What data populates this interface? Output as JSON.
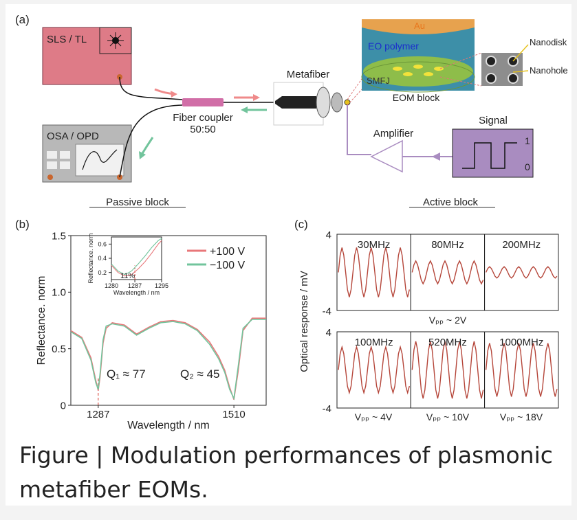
{
  "diagram": {
    "panel_label": "(a)",
    "source": "SLS / TL",
    "analyzer": "OSA / OPD",
    "coupler": "Fiber coupler",
    "coupler_ratio": "50:50",
    "metafiber": "Metafiber",
    "layer_top": "Au",
    "layer_mid": "EO polymer",
    "layer_base": "SMFJ",
    "eom_block": "EOM block",
    "nanodisk": "Nanodisk",
    "nanohole": "Nanohole",
    "amplifier": "Amplifier",
    "signal": "Signal",
    "signal_high": "1",
    "signal_low": "0",
    "passive_block": "Passive block",
    "active_block": "Active block"
  },
  "chart_data": [
    {
      "type": "line",
      "panel_label": "(b)",
      "xlabel": "Wavelength / nm",
      "ylabel": "Reflectance. norm",
      "x": [
        1242,
        1260,
        1275,
        1283,
        1287,
        1290,
        1295,
        1300,
        1310,
        1330,
        1350,
        1370,
        1390,
        1410,
        1430,
        1450,
        1470,
        1485,
        1495,
        1503,
        1510,
        1517,
        1525,
        1540,
        1563
      ],
      "series": [
        {
          "name": "+100 V",
          "color": "#e8777a",
          "values": [
            0.66,
            0.6,
            0.42,
            0.22,
            0.13,
            0.25,
            0.55,
            0.68,
            0.73,
            0.71,
            0.63,
            0.69,
            0.74,
            0.75,
            0.73,
            0.67,
            0.56,
            0.43,
            0.31,
            0.16,
            0.05,
            0.3,
            0.66,
            0.77,
            0.77
          ]
        },
        {
          "name": "−100 V",
          "color": "#72c49c",
          "values": [
            0.65,
            0.59,
            0.4,
            0.2,
            0.14,
            0.28,
            0.58,
            0.7,
            0.72,
            0.7,
            0.62,
            0.68,
            0.73,
            0.74,
            0.72,
            0.66,
            0.54,
            0.41,
            0.29,
            0.14,
            0.06,
            0.34,
            0.68,
            0.76,
            0.76
          ]
        }
      ],
      "xlim": [
        1242,
        1563
      ],
      "ylim": [
        0,
        1.5
      ],
      "xticks": [
        1287,
        1510
      ],
      "yticks": [
        0,
        0.5,
        {
          "value": 1,
          "label": "1.0"
        },
        1.5
      ],
      "annotations": [
        "Q₁ ≈ 77",
        "Q₂ ≈ 45"
      ],
      "legend": "upper right"
    },
    {
      "type": "line",
      "xlabel": "Wavelength / nm",
      "ylabel": "Reflectance. norm",
      "x": [
        1280,
        1282,
        1284,
        1286,
        1288,
        1290,
        1292,
        1294,
        1295
      ],
      "series": [
        {
          "color": "#e8777a",
          "values": [
            0.3,
            0.2,
            0.15,
            0.17,
            0.25,
            0.35,
            0.47,
            0.6,
            0.65
          ]
        },
        {
          "color": "#72c49c",
          "values": [
            0.32,
            0.22,
            0.17,
            0.22,
            0.32,
            0.43,
            0.55,
            0.65,
            0.68
          ]
        }
      ],
      "xlim": [
        1280,
        1295
      ],
      "ylim": [
        0.1,
        0.7
      ],
      "xticks": [
        1280,
        1287,
        1295
      ],
      "yticks": [
        0.2,
        0.4,
        0.6
      ],
      "annotations": [
        "11%"
      ]
    },
    {
      "type": "scope",
      "panel_label": "(c)",
      "ylabel": "Optical response / mV",
      "ylim": [
        -4,
        4
      ],
      "yticks": [
        4,
        -4
      ],
      "color": "#b5463a",
      "panels": [
        {
          "title": "30MHz",
          "values": [
            0,
            1.8,
            2.6,
            1.8,
            0,
            -1.8,
            -2.6,
            -1.8,
            0,
            1.8,
            2.6,
            1.8,
            0,
            -1.8,
            -2.6,
            -1.8,
            0,
            1.8,
            2.6,
            1.8,
            0,
            -1.8,
            -2.6,
            -1.8,
            0,
            1.8,
            2.6,
            1.8,
            0,
            -1.8,
            -2.6,
            -1.8,
            0,
            1.8,
            2.6,
            1.8,
            0,
            -1.8,
            -2.6,
            -1.8
          ]
        },
        {
          "title": "80MHz",
          "values": [
            0,
            0.8,
            1.2,
            0.8,
            0,
            -0.8,
            -1.2,
            -0.8,
            0,
            0.8,
            1.2,
            0.8,
            0,
            -0.8,
            -1.2,
            -0.8,
            0,
            0.8,
            1.2,
            0.8,
            0,
            -0.8,
            -1.2,
            -0.8,
            0,
            0.8,
            1.2,
            0.8,
            0,
            -0.8,
            -1.2,
            -0.8,
            0,
            0.8,
            1.2,
            0.8,
            0,
            -0.8,
            -1.2,
            -0.8
          ]
        },
        {
          "title": "200MHz",
          "values": [
            0,
            0.4,
            0.6,
            0.4,
            0,
            -0.4,
            -0.6,
            -0.4,
            0,
            0.4,
            0.6,
            0.4,
            0,
            -0.4,
            -0.6,
            -0.4,
            0,
            0.4,
            0.6,
            0.4,
            0,
            -0.4,
            -0.6,
            -0.4,
            0,
            0.4,
            0.6,
            0.4,
            0,
            -0.4,
            -0.6,
            -0.4,
            0,
            0.4,
            0.6,
            0.4,
            0,
            -0.4,
            -0.6,
            -0.4
          ]
        },
        {
          "title": "100MHz",
          "values": [
            0,
            1.7,
            2.4,
            1.7,
            0,
            -1.7,
            -2.4,
            -1.7,
            0,
            1.7,
            2.4,
            1.7,
            0,
            -1.7,
            -2.4,
            -1.7,
            0,
            1.7,
            2.4,
            1.7,
            0,
            -1.7,
            -2.4,
            -1.7,
            0,
            1.7,
            2.4,
            1.7,
            0,
            -1.7,
            -2.4,
            -1.7,
            0,
            1.7,
            2.4,
            1.7,
            0,
            -1.7,
            -2.4,
            -1.7
          ]
        },
        {
          "title": "520MHz",
          "values": [
            0,
            2.1,
            3,
            2.1,
            0,
            -2.1,
            -3,
            -2.1,
            0,
            2.1,
            3,
            2.1,
            0,
            -2.1,
            -3,
            -2.1,
            0,
            2.1,
            3,
            2.1,
            0,
            -2.1,
            -3,
            -2.1,
            0,
            2.1,
            3,
            2.1,
            0,
            -2.1,
            -3,
            -2.1,
            0,
            2.1,
            3,
            2.1,
            0,
            -2.1,
            -3,
            -2.1
          ]
        },
        {
          "title": "1000MHz",
          "values": [
            0,
            2,
            2.8,
            2,
            0,
            -2,
            -2.8,
            -2,
            0,
            2,
            2.8,
            2,
            0,
            -2,
            -2.8,
            -2,
            0,
            2,
            2.8,
            2,
            0,
            -2,
            -2.8,
            -2,
            0,
            2,
            2.8,
            2,
            0,
            -2,
            -2.8,
            -2,
            0,
            2,
            2.8,
            2,
            0,
            -2,
            -2.8,
            -2
          ]
        }
      ],
      "captions": [
        "Vₚₚ ~ 2V",
        "Vₚₚ ~ 4V",
        "Vₚₚ ~ 10V",
        "Vₚₚ ~ 18V"
      ]
    }
  ],
  "caption": "Figure | Modulation performances of plasmonic metafiber EOMs."
}
